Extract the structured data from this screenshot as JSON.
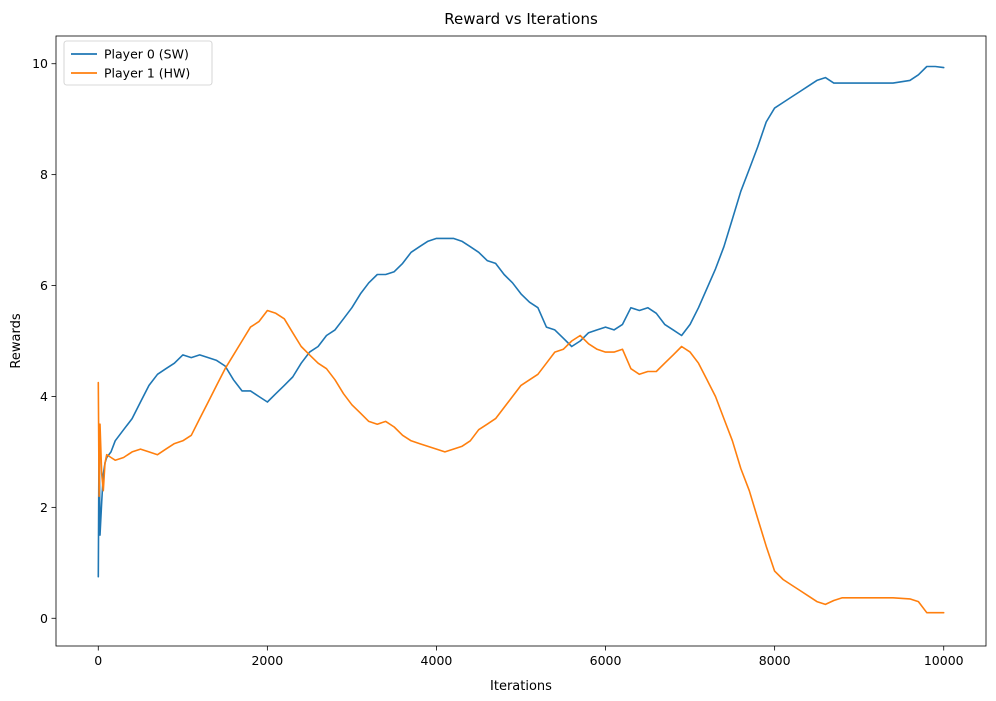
{
  "chart_data": {
    "type": "line",
    "title": "Reward vs Iterations",
    "xlabel": "Iterations",
    "ylabel": "Rewards",
    "xlim": [
      -500,
      10500
    ],
    "ylim": [
      -0.5,
      10.5
    ],
    "xticks": [
      0,
      2000,
      4000,
      6000,
      8000,
      10000
    ],
    "xtick_labels": [
      "0",
      "2000",
      "4000",
      "6000",
      "8000",
      "10000"
    ],
    "yticks": [
      0,
      2,
      4,
      6,
      8,
      10
    ],
    "ytick_labels": [
      "0",
      "2",
      "4",
      "6",
      "8",
      "10"
    ],
    "grid": false,
    "legend_position": "top-left",
    "series": [
      {
        "name": "Player 0 (SW)",
        "color": "#1f77b4",
        "x": [
          0,
          10,
          20,
          40,
          60,
          80,
          100,
          150,
          200,
          300,
          400,
          500,
          600,
          700,
          800,
          900,
          1000,
          1100,
          1200,
          1300,
          1400,
          1500,
          1600,
          1700,
          1800,
          1900,
          2000,
          2100,
          2200,
          2300,
          2400,
          2500,
          2600,
          2700,
          2800,
          2900,
          3000,
          3100,
          3200,
          3300,
          3400,
          3500,
          3600,
          3700,
          3800,
          3900,
          4000,
          4100,
          4200,
          4300,
          4400,
          4500,
          4600,
          4700,
          4800,
          4900,
          5000,
          5100,
          5200,
          5300,
          5400,
          5500,
          5600,
          5700,
          5800,
          5900,
          6000,
          6100,
          6200,
          6300,
          6400,
          6500,
          6600,
          6700,
          6800,
          6900,
          7000,
          7100,
          7200,
          7300,
          7400,
          7500,
          7600,
          7700,
          7800,
          7900,
          8000,
          8100,
          8200,
          8300,
          8400,
          8500,
          8600,
          8700,
          8800,
          8900,
          9000,
          9200,
          9400,
          9600,
          9700,
          9800,
          9900,
          10000
        ],
        "y": [
          0.75,
          3.5,
          1.5,
          2.1,
          2.6,
          2.8,
          2.9,
          3.0,
          3.2,
          3.4,
          3.6,
          3.9,
          4.2,
          4.4,
          4.5,
          4.6,
          4.75,
          4.7,
          4.75,
          4.7,
          4.65,
          4.55,
          4.3,
          4.1,
          4.1,
          4.0,
          3.9,
          4.05,
          4.2,
          4.35,
          4.6,
          4.8,
          4.9,
          5.1,
          5.2,
          5.4,
          5.6,
          5.85,
          6.05,
          6.2,
          6.2,
          6.25,
          6.4,
          6.6,
          6.7,
          6.8,
          6.85,
          6.85,
          6.85,
          6.8,
          6.7,
          6.6,
          6.45,
          6.4,
          6.2,
          6.05,
          5.85,
          5.7,
          5.6,
          5.25,
          5.2,
          5.05,
          4.9,
          5.0,
          5.15,
          5.2,
          5.25,
          5.2,
          5.3,
          5.6,
          5.55,
          5.6,
          5.5,
          5.3,
          5.2,
          5.1,
          5.3,
          5.6,
          5.95,
          6.3,
          6.7,
          7.2,
          7.7,
          8.1,
          8.5,
          8.95,
          9.2,
          9.3,
          9.4,
          9.5,
          9.6,
          9.7,
          9.75,
          9.65,
          9.65,
          9.65,
          9.65,
          9.65,
          9.65,
          9.7,
          9.8,
          9.95,
          9.95,
          9.93
        ]
      },
      {
        "name": "Player 1 (HW)",
        "color": "#ff7f0e",
        "x": [
          0,
          10,
          20,
          40,
          60,
          80,
          100,
          150,
          200,
          300,
          400,
          500,
          600,
          700,
          800,
          900,
          1000,
          1100,
          1200,
          1300,
          1400,
          1500,
          1600,
          1700,
          1800,
          1900,
          2000,
          2100,
          2200,
          2300,
          2400,
          2500,
          2600,
          2700,
          2800,
          2900,
          3000,
          3100,
          3200,
          3300,
          3400,
          3500,
          3600,
          3700,
          3800,
          3900,
          4000,
          4100,
          4200,
          4300,
          4400,
          4500,
          4600,
          4700,
          4800,
          4900,
          5000,
          5100,
          5200,
          5300,
          5400,
          5500,
          5600,
          5700,
          5800,
          5900,
          6000,
          6100,
          6200,
          6300,
          6400,
          6500,
          6600,
          6700,
          6800,
          6900,
          7000,
          7100,
          7200,
          7300,
          7400,
          7500,
          7600,
          7700,
          7800,
          7900,
          8000,
          8100,
          8200,
          8300,
          8400,
          8500,
          8600,
          8700,
          8800,
          8900,
          9000,
          9200,
          9400,
          9600,
          9700,
          9800,
          9900,
          10000
        ],
        "y": [
          4.25,
          2.2,
          3.5,
          2.6,
          2.3,
          2.8,
          2.95,
          2.9,
          2.85,
          2.9,
          3.0,
          3.05,
          3.0,
          2.95,
          3.05,
          3.15,
          3.2,
          3.3,
          3.6,
          3.9,
          4.2,
          4.5,
          4.75,
          5.0,
          5.25,
          5.35,
          5.55,
          5.5,
          5.4,
          5.15,
          4.9,
          4.75,
          4.6,
          4.5,
          4.3,
          4.05,
          3.85,
          3.7,
          3.55,
          3.5,
          3.55,
          3.45,
          3.3,
          3.2,
          3.15,
          3.1,
          3.05,
          3.0,
          3.05,
          3.1,
          3.2,
          3.4,
          3.5,
          3.6,
          3.8,
          4.0,
          4.2,
          4.3,
          4.4,
          4.6,
          4.8,
          4.85,
          5.0,
          5.1,
          4.95,
          4.85,
          4.8,
          4.8,
          4.85,
          4.5,
          4.4,
          4.45,
          4.45,
          4.6,
          4.75,
          4.9,
          4.8,
          4.6,
          4.3,
          4.0,
          3.6,
          3.2,
          2.7,
          2.3,
          1.8,
          1.3,
          0.85,
          0.7,
          0.6,
          0.5,
          0.4,
          0.3,
          0.25,
          0.32,
          0.37,
          0.37,
          0.37,
          0.37,
          0.37,
          0.35,
          0.3,
          0.1,
          0.1,
          0.1
        ]
      }
    ]
  }
}
